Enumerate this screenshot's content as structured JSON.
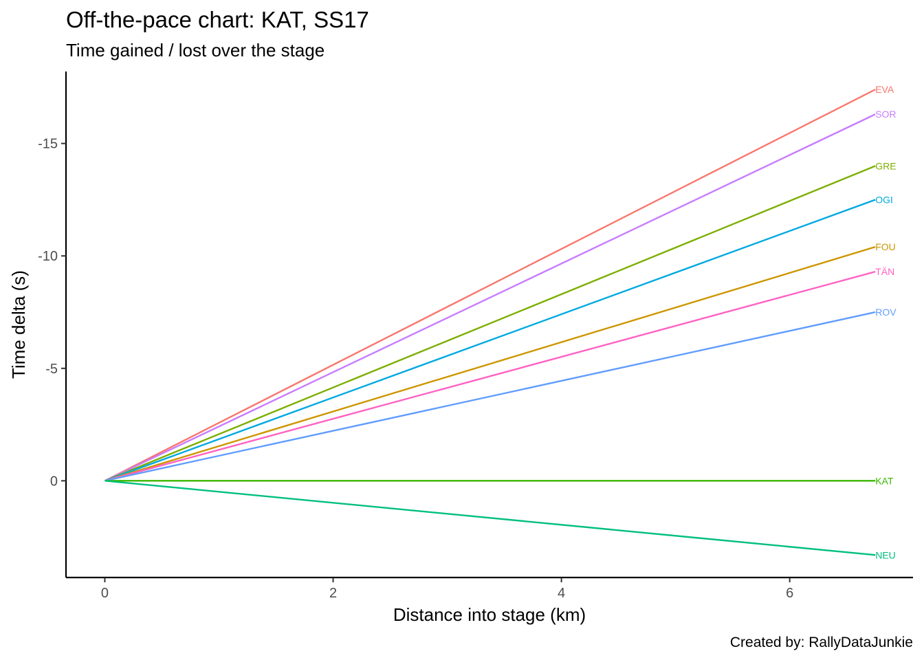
{
  "chart_data": {
    "type": "line",
    "title": "Off-the-pace chart: KAT, SS17",
    "subtitle": "Time gained / lost over the stage",
    "xlabel": "Distance into stage (km)",
    "ylabel": "Time delta (s)",
    "caption": "Created by: RallyDataJunkie",
    "x_ticks": [
      0,
      2,
      4,
      6
    ],
    "x_tick_labels": [
      "0",
      "2",
      "4",
      "6"
    ],
    "y_ticks": [
      -15,
      -10,
      -5,
      0
    ],
    "y_tick_labels": [
      "-15",
      "-10",
      "-5",
      "0"
    ],
    "xlim": [
      -0.34,
      7.08
    ],
    "ylim": [
      4.3,
      -18.2
    ],
    "y_reversed": true,
    "grid": false,
    "series": [
      {
        "name": "EVA",
        "x": [
          0,
          6.75
        ],
        "y": [
          0,
          -17.4
        ],
        "color": "#f8766d"
      },
      {
        "name": "SOR",
        "x": [
          0,
          6.75
        ],
        "y": [
          0,
          -16.3
        ],
        "color": "#c77cff"
      },
      {
        "name": "GRE",
        "x": [
          0,
          6.75
        ],
        "y": [
          0,
          -14.0
        ],
        "color": "#7cae00"
      },
      {
        "name": "OGI",
        "x": [
          0,
          6.75
        ],
        "y": [
          0,
          -12.5
        ],
        "color": "#00a9e0"
      },
      {
        "name": "FOU",
        "x": [
          0,
          6.75
        ],
        "y": [
          0,
          -10.4
        ],
        "color": "#cd9600"
      },
      {
        "name": "TÄN",
        "x": [
          0,
          6.75
        ],
        "y": [
          0,
          -9.3
        ],
        "color": "#ff61c3"
      },
      {
        "name": "ROV",
        "x": [
          0,
          6.75
        ],
        "y": [
          0,
          -7.5
        ],
        "color": "#619cff"
      },
      {
        "name": "KAT",
        "x": [
          0,
          6.75
        ],
        "y": [
          0,
          0.0
        ],
        "color": "#39b600"
      },
      {
        "name": "NEU",
        "x": [
          0,
          6.75
        ],
        "y": [
          0,
          3.3
        ],
        "color": "#00bf7d"
      }
    ]
  }
}
